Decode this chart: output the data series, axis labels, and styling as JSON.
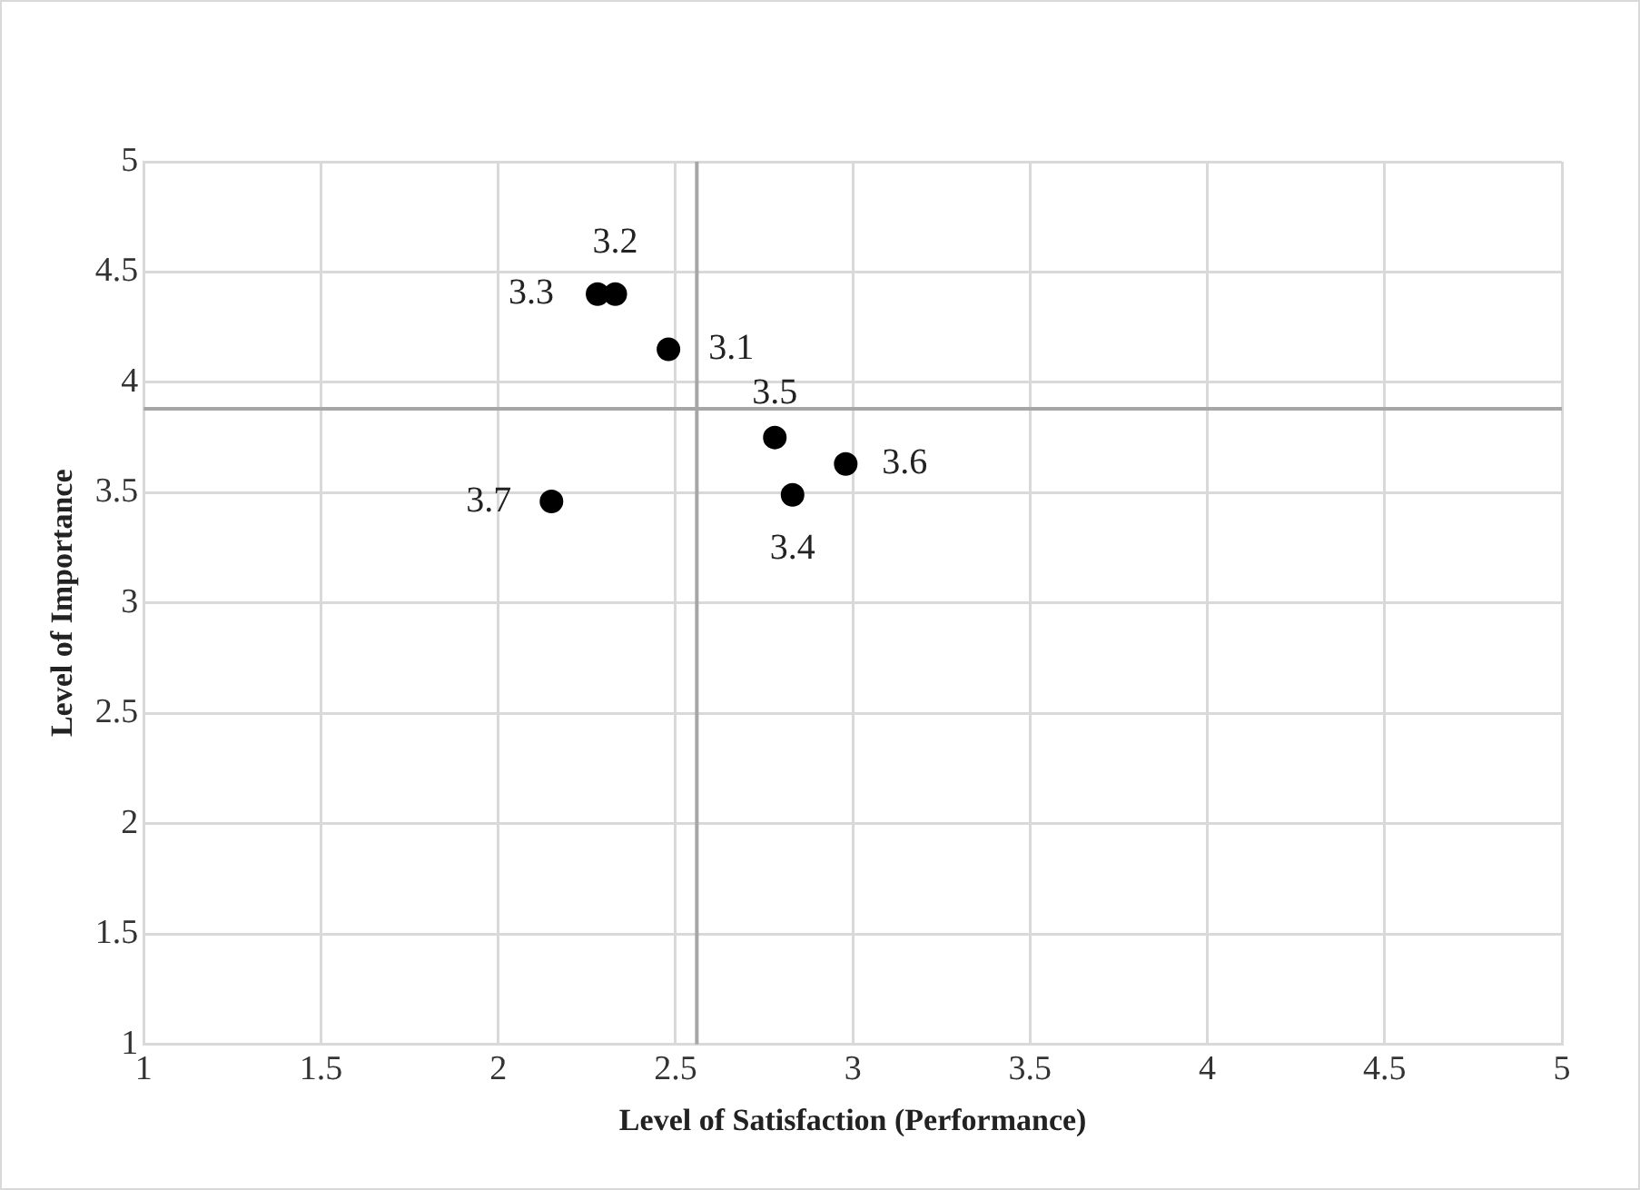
{
  "chart_data": {
    "type": "scatter",
    "xlabel": "Level of Satisfaction (Performance)",
    "ylabel": "Level of Importance",
    "series": [
      {
        "color": "#000000",
        "x": [
          2.48,
          2.33,
          2.28,
          2.83,
          2.78,
          2.98,
          2.15
        ],
        "values": [
          4.15,
          4.4,
          4.4,
          3.49,
          3.75,
          3.63,
          3.46
        ]
      }
    ],
    "annotations": [
      {
        "text": "3.1",
        "x": 2.48,
        "y": 4.15
      },
      {
        "text": "3.2",
        "x": 2.33,
        "y": 4.4
      },
      {
        "text": "3.3",
        "x": 2.28,
        "y": 4.4
      },
      {
        "text": "3.4",
        "x": 2.83,
        "y": 3.49
      },
      {
        "text": "3.5",
        "x": 2.78,
        "y": 3.75
      },
      {
        "text": "3.6",
        "x": 2.98,
        "y": 3.63
      },
      {
        "text": "3.7",
        "x": 2.15,
        "y": 3.46
      }
    ],
    "ref_lines": [
      {
        "axis": "x",
        "value": 2.56,
        "color": "#a6a6a6"
      },
      {
        "axis": "y",
        "value": 3.88,
        "color": "#a6a6a6"
      }
    ],
    "xlim": [
      1,
      5
    ],
    "xticks": [
      1,
      1.5,
      2,
      2.5,
      3,
      3.5,
      4,
      4.5,
      5
    ],
    "ylim": [
      1,
      5
    ],
    "yticks": [
      1,
      1.5,
      2,
      2.5,
      3,
      3.5,
      4,
      4.5,
      5
    ],
    "grid": true,
    "marker": "circle",
    "legend": false
  }
}
